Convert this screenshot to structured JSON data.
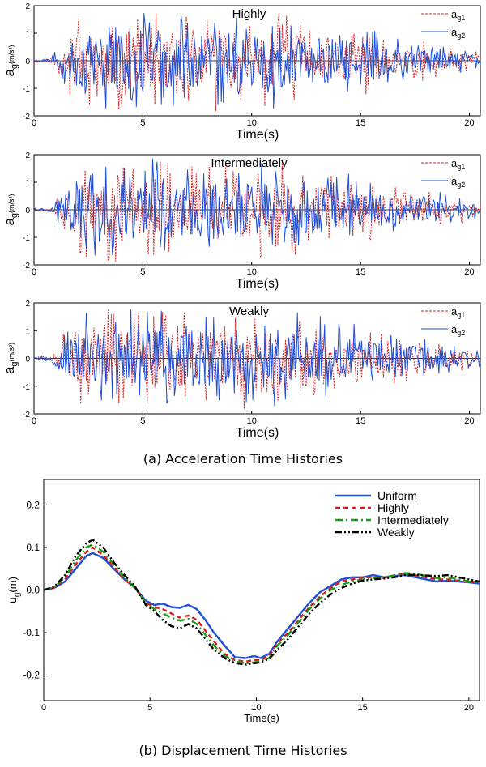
{
  "captions": {
    "a": "(a) Acceleration Time Histories",
    "b": "(b) Displacement Time Histories"
  },
  "colors": {
    "blue": "#1f4fd6",
    "red": "#d62020",
    "green": "#1a9a1a",
    "black": "#000000"
  },
  "chart_data": [
    {
      "type": "line",
      "title": "Highly",
      "xlabel": "Time(s)",
      "ylabel": "a",
      "ylabel_sub": "g",
      "ylabel_unit": "(m/s²)",
      "xlim": [
        0,
        20.5
      ],
      "ylim": [
        -2,
        2
      ],
      "xticks": [
        0,
        5,
        10,
        15,
        20
      ],
      "yticks": [
        -2,
        -1,
        0,
        1,
        2
      ],
      "legend_position": "top-right",
      "series": [
        {
          "name": "a",
          "sub": "g1",
          "color": "#d62020",
          "style": "dashed",
          "seed": 11
        },
        {
          "name": "a",
          "sub": "g2",
          "color": "#1f4fd6",
          "style": "solid",
          "seed": 23
        }
      ]
    },
    {
      "type": "line",
      "title": "Intermediately",
      "xlabel": "Time(s)",
      "ylabel": "a",
      "ylabel_sub": "g",
      "ylabel_unit": "(m/s²)",
      "xlim": [
        0,
        20.5
      ],
      "ylim": [
        -2,
        2
      ],
      "xticks": [
        0,
        5,
        10,
        15,
        20
      ],
      "yticks": [
        -2,
        -1,
        0,
        1,
        2
      ],
      "legend_position": "top-right",
      "series": [
        {
          "name": "a",
          "sub": "g1",
          "color": "#d62020",
          "style": "dashed",
          "seed": 37
        },
        {
          "name": "a",
          "sub": "g2",
          "color": "#1f4fd6",
          "style": "solid",
          "seed": 41
        }
      ]
    },
    {
      "type": "line",
      "title": "Weakly",
      "xlabel": "Time(s)",
      "ylabel": "a",
      "ylabel_sub": "g",
      "ylabel_unit": "(m/s²)",
      "xlim": [
        0,
        20.5
      ],
      "ylim": [
        -2,
        2
      ],
      "xticks": [
        0,
        5,
        10,
        15,
        20
      ],
      "yticks": [
        -2,
        -1,
        0,
        1,
        2
      ],
      "legend_position": "top-right",
      "series": [
        {
          "name": "a",
          "sub": "g1",
          "color": "#d62020",
          "style": "dashed",
          "seed": 53
        },
        {
          "name": "a",
          "sub": "g2",
          "color": "#1f4fd6",
          "style": "solid",
          "seed": 67
        }
      ]
    },
    {
      "type": "line",
      "title": "",
      "xlabel": "Time(s)",
      "ylabel": "u",
      "ylabel_sub": "g",
      "ylabel_unit": "(m)",
      "xlim": [
        0,
        20.5
      ],
      "ylim": [
        -0.26,
        0.26
      ],
      "xticks": [
        0,
        5,
        10,
        15,
        20
      ],
      "yticks": [
        -0.2,
        -0.1,
        0.0,
        0.1,
        0.2
      ],
      "legend_position": "top-right",
      "series": [
        {
          "name": "Uniform",
          "color": "#1f4fd6",
          "style": "solid",
          "x": [
            0,
            0.5,
            1,
            1.5,
            2,
            2.3,
            2.8,
            3.3,
            3.8,
            4.3,
            4.8,
            5.2,
            5.6,
            6.0,
            6.4,
            6.8,
            7.2,
            7.6,
            8.0,
            8.5,
            9.0,
            9.5,
            9.9,
            10.2,
            10.6,
            11.0,
            11.5,
            12.0,
            12.5,
            13.0,
            13.5,
            14.0,
            14.5,
            15.0,
            15.5,
            16.0,
            16.5,
            17.0,
            17.5,
            18.0,
            18.5,
            19.0,
            19.5,
            20.0,
            20.5
          ],
          "y": [
            0.0,
            0.005,
            0.02,
            0.05,
            0.08,
            0.087,
            0.075,
            0.05,
            0.025,
            0.005,
            -0.025,
            -0.035,
            -0.032,
            -0.04,
            -0.042,
            -0.035,
            -0.045,
            -0.07,
            -0.1,
            -0.13,
            -0.158,
            -0.16,
            -0.155,
            -0.16,
            -0.15,
            -0.12,
            -0.09,
            -0.06,
            -0.03,
            -0.005,
            0.01,
            0.025,
            0.03,
            0.03,
            0.035,
            0.03,
            0.033,
            0.035,
            0.03,
            0.025,
            0.02,
            0.022,
            0.02,
            0.018,
            0.015
          ]
        },
        {
          "name": "Highly",
          "color": "#d62020",
          "style": "dashed",
          "x": [
            0,
            0.5,
            1,
            1.5,
            2,
            2.3,
            2.8,
            3.3,
            3.8,
            4.3,
            4.8,
            5.2,
            5.6,
            6.0,
            6.4,
            6.8,
            7.2,
            7.6,
            8.0,
            8.5,
            9.0,
            9.5,
            9.9,
            10.2,
            10.6,
            11.0,
            11.5,
            12.0,
            12.5,
            13.0,
            13.5,
            14.0,
            14.5,
            15.0,
            15.5,
            16.0,
            16.5,
            17.0,
            17.5,
            18.0,
            18.5,
            19.0,
            19.5,
            20.0,
            20.5
          ],
          "y": [
            0.0,
            0.006,
            0.025,
            0.06,
            0.09,
            0.1,
            0.082,
            0.055,
            0.025,
            0.005,
            -0.03,
            -0.04,
            -0.045,
            -0.055,
            -0.065,
            -0.06,
            -0.07,
            -0.095,
            -0.12,
            -0.15,
            -0.165,
            -0.168,
            -0.165,
            -0.165,
            -0.155,
            -0.125,
            -0.1,
            -0.07,
            -0.04,
            -0.015,
            0.005,
            0.02,
            0.025,
            0.03,
            0.03,
            0.028,
            0.035,
            0.038,
            0.034,
            0.03,
            0.025,
            0.025,
            0.022,
            0.02,
            0.018
          ]
        },
        {
          "name": "Intermediately",
          "color": "#1a9a1a",
          "style": "dashdot",
          "x": [
            0,
            0.5,
            1,
            1.5,
            2,
            2.3,
            2.8,
            3.3,
            3.8,
            4.3,
            4.8,
            5.2,
            5.6,
            6.0,
            6.4,
            6.8,
            7.2,
            7.6,
            8.0,
            8.5,
            9.0,
            9.5,
            9.9,
            10.2,
            10.6,
            11.0,
            11.5,
            12.0,
            12.5,
            13.0,
            13.5,
            14.0,
            14.5,
            15.0,
            15.5,
            16.0,
            16.5,
            17.0,
            17.5,
            18.0,
            18.5,
            19.0,
            19.5,
            20.0,
            20.5
          ],
          "y": [
            0.0,
            0.007,
            0.03,
            0.07,
            0.1,
            0.107,
            0.09,
            0.06,
            0.03,
            0.005,
            -0.03,
            -0.045,
            -0.055,
            -0.065,
            -0.072,
            -0.068,
            -0.08,
            -0.105,
            -0.13,
            -0.155,
            -0.168,
            -0.172,
            -0.17,
            -0.168,
            -0.16,
            -0.13,
            -0.105,
            -0.075,
            -0.045,
            -0.02,
            0.0,
            0.012,
            0.02,
            0.025,
            0.028,
            0.03,
            0.034,
            0.04,
            0.038,
            0.033,
            0.028,
            0.03,
            0.025,
            0.02,
            0.018
          ]
        },
        {
          "name": "Weakly",
          "color": "#000000",
          "style": "dashdotdot",
          "x": [
            0,
            0.5,
            1,
            1.5,
            2,
            2.3,
            2.8,
            3.3,
            3.8,
            4.3,
            4.8,
            5.2,
            5.6,
            6.0,
            6.4,
            6.8,
            7.2,
            7.6,
            8.0,
            8.5,
            9.0,
            9.5,
            9.9,
            10.2,
            10.6,
            11.0,
            11.5,
            12.0,
            12.5,
            13.0,
            13.5,
            14.0,
            14.5,
            15.0,
            15.5,
            16.0,
            16.5,
            17.0,
            17.5,
            18.0,
            18.5,
            19.0,
            19.5,
            20.0,
            20.5
          ],
          "y": [
            0.0,
            0.008,
            0.035,
            0.08,
            0.11,
            0.118,
            0.1,
            0.065,
            0.035,
            0.008,
            -0.035,
            -0.05,
            -0.07,
            -0.085,
            -0.09,
            -0.08,
            -0.09,
            -0.115,
            -0.14,
            -0.16,
            -0.172,
            -0.175,
            -0.172,
            -0.17,
            -0.162,
            -0.14,
            -0.115,
            -0.085,
            -0.055,
            -0.03,
            -0.01,
            0.005,
            0.015,
            0.022,
            0.025,
            0.027,
            0.03,
            0.035,
            0.036,
            0.034,
            0.033,
            0.035,
            0.03,
            0.025,
            0.02
          ]
        }
      ]
    }
  ]
}
